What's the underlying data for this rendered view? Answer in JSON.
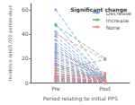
{
  "chart_data": {
    "type": "line",
    "xlabel": "Period relating to initial PPS",
    "ylabel": "Incidence rate/1,000 person-days",
    "legend_title": "Significant change",
    "categories": [
      "Pre",
      "Post"
    ],
    "ylim": [
      0,
      65
    ],
    "yticks": [
      0,
      20,
      40,
      60
    ],
    "grid": false,
    "legend": "upper right",
    "series": [
      {
        "name": "Decrease",
        "color": "#6699dd",
        "line_style": "dashed",
        "marker": "circle",
        "values": [
          [
            60,
            4
          ],
          [
            48,
            3
          ],
          [
            42,
            5
          ],
          [
            38,
            3.5
          ],
          [
            35,
            3
          ],
          [
            32,
            2.5
          ],
          [
            30,
            2
          ],
          [
            28,
            2
          ],
          [
            26,
            4
          ],
          [
            24,
            2
          ],
          [
            22,
            3
          ],
          [
            20,
            2
          ],
          [
            18,
            2
          ],
          [
            16,
            1.5
          ],
          [
            15,
            1
          ],
          [
            14,
            1
          ],
          [
            12,
            1
          ],
          [
            10,
            1
          ],
          [
            8,
            0.8
          ],
          [
            6,
            0.5
          ],
          [
            5,
            0.4
          ],
          [
            4,
            0.2
          ],
          [
            3,
            0.1
          ],
          [
            2,
            0.1
          ],
          [
            1.5,
            0.1
          ],
          [
            1,
            0.05
          ]
        ]
      },
      {
        "name": "Increase",
        "color": "#55bb55",
        "line_style": "dashed",
        "marker": "circle",
        "values": [
          [
            47,
            20
          ],
          [
            10,
            19
          ],
          [
            5,
            7
          ]
        ]
      },
      {
        "name": "None",
        "color": "#ee8888",
        "line_style": "dashed",
        "marker": "circle",
        "values": [
          [
            40,
            19
          ],
          [
            25,
            8
          ],
          [
            20,
            6
          ],
          [
            15,
            3.5
          ],
          [
            12,
            3
          ],
          [
            10,
            2.5
          ],
          [
            8,
            2
          ],
          [
            7,
            1.5
          ],
          [
            5,
            1
          ],
          [
            4,
            0.8
          ],
          [
            3,
            0.5
          ],
          [
            2,
            0.3
          ],
          [
            1.5,
            0.2
          ]
        ]
      }
    ]
  }
}
